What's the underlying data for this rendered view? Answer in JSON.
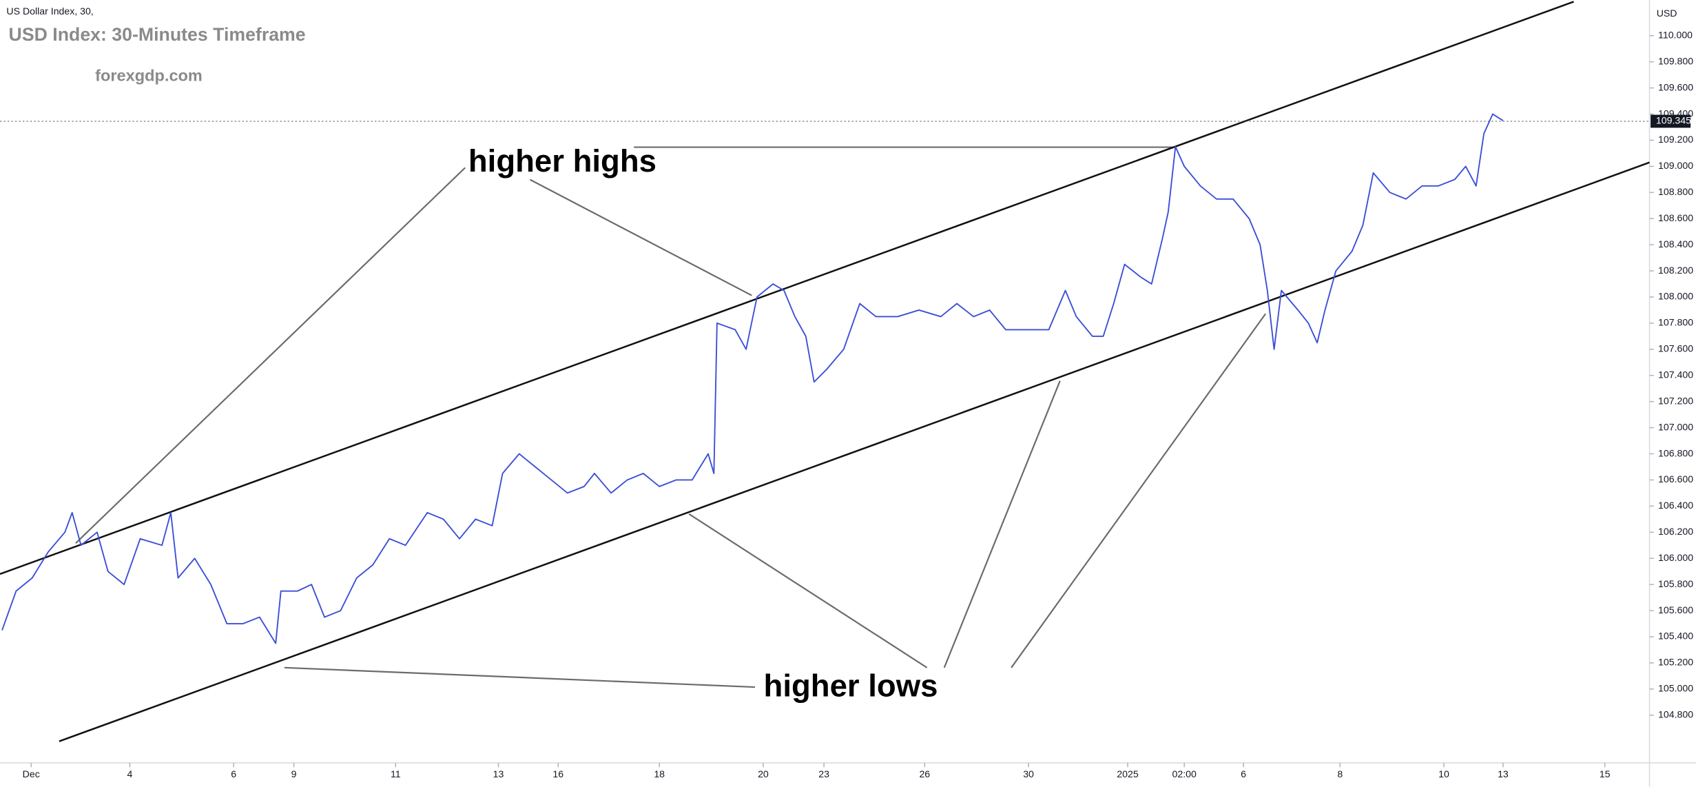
{
  "chart_data": {
    "type": "line",
    "symbol": "US Dollar Index, 30,",
    "title": "USD Index: 30-Minutes Timeframe",
    "watermark": "forexgdp.com",
    "y_axis_label": "USD",
    "annotations": [
      "higher highs",
      "higher lows"
    ],
    "color": "#3b4fd6",
    "grid": false,
    "xlim": [
      -0.6,
      31.17
    ],
    "ylim": [
      104.435,
      110.273
    ],
    "xticks": [
      {
        "value": 0,
        "label": "Dec"
      },
      {
        "value": 1.9,
        "label": "4"
      },
      {
        "value": 3.9,
        "label": "6"
      },
      {
        "value": 5.06,
        "label": "9"
      },
      {
        "value": 7.02,
        "label": "11"
      },
      {
        "value": 9,
        "label": "13"
      },
      {
        "value": 10.15,
        "label": "16"
      },
      {
        "value": 12.1,
        "label": "18"
      },
      {
        "value": 14.1,
        "label": "20"
      },
      {
        "value": 15.27,
        "label": "23"
      },
      {
        "value": 17.21,
        "label": "26"
      },
      {
        "value": 19.21,
        "label": "30"
      },
      {
        "value": 21.12,
        "label": "2025"
      },
      {
        "value": 22.21,
        "label": "02:00"
      },
      {
        "value": 23.35,
        "label": "6"
      },
      {
        "value": 25.21,
        "label": "8"
      },
      {
        "value": 27.21,
        "label": "10"
      },
      {
        "value": 28.35,
        "label": "13"
      },
      {
        "value": 30.31,
        "label": "15"
      }
    ],
    "yticks": [
      {
        "value": 104.8,
        "label": "104.800"
      },
      {
        "value": 105.0,
        "label": "105.000"
      },
      {
        "value": 105.2,
        "label": "105.200"
      },
      {
        "value": 105.4,
        "label": "105.400"
      },
      {
        "value": 105.6,
        "label": "105.600"
      },
      {
        "value": 105.8,
        "label": "105.800"
      },
      {
        "value": 106.0,
        "label": "106.000"
      },
      {
        "value": 106.2,
        "label": "106.200"
      },
      {
        "value": 106.4,
        "label": "106.400"
      },
      {
        "value": 106.6,
        "label": "106.600"
      },
      {
        "value": 106.8,
        "label": "106.800"
      },
      {
        "value": 107.0,
        "label": "107.000"
      },
      {
        "value": 107.2,
        "label": "107.200"
      },
      {
        "value": 107.4,
        "label": "107.400"
      },
      {
        "value": 107.6,
        "label": "107.600"
      },
      {
        "value": 107.8,
        "label": "107.800"
      },
      {
        "value": 108.0,
        "label": "108.000"
      },
      {
        "value": 108.2,
        "label": "108.200"
      },
      {
        "value": 108.4,
        "label": "108.400"
      },
      {
        "value": 108.6,
        "label": "108.600"
      },
      {
        "value": 108.8,
        "label": "108.800"
      },
      {
        "value": 109.0,
        "label": "109.000"
      },
      {
        "value": 109.2,
        "label": "109.200"
      },
      {
        "value": 109.4,
        "label": "109.400"
      },
      {
        "value": 109.6,
        "label": "109.600"
      },
      {
        "value": 109.8,
        "label": "109.800"
      },
      {
        "value": 110.0,
        "label": "110.000"
      }
    ],
    "last_price": 109.345,
    "x": [
      -0.56,
      -0.29,
      0.02,
      0.33,
      0.65,
      0.79,
      0.96,
      1.27,
      1.48,
      1.79,
      2.1,
      2.52,
      2.69,
      2.83,
      3.15,
      3.46,
      3.77,
      4.08,
      4.4,
      4.71,
      4.81,
      5.13,
      5.4,
      5.65,
      5.96,
      6.27,
      6.58,
      6.9,
      7.21,
      7.63,
      7.94,
      8.25,
      8.56,
      8.88,
      9.08,
      9.4,
      9.71,
      10.02,
      10.33,
      10.65,
      10.85,
      11.17,
      11.48,
      11.79,
      12.1,
      12.42,
      12.73,
      13.04,
      13.15,
      13.21,
      13.56,
      13.77,
      13.98,
      14.29,
      14.5,
      14.71,
      14.92,
      15.08,
      15.33,
      15.65,
      15.96,
      16.27,
      16.69,
      17.1,
      17.52,
      17.83,
      18.15,
      18.46,
      18.77,
      19.19,
      19.6,
      19.92,
      20.13,
      20.44,
      20.65,
      20.85,
      21.06,
      21.38,
      21.58,
      21.79,
      21.9,
      22.04,
      22.21,
      22.52,
      22.83,
      23.15,
      23.46,
      23.67,
      23.81,
      23.94,
      24.08,
      24.4,
      24.6,
      24.77,
      24.92,
      25.13,
      25.44,
      25.65,
      25.85,
      26.17,
      26.48,
      26.79,
      27.1,
      27.42,
      27.63,
      27.83,
      27.98,
      28.15,
      28.35
    ],
    "values": [
      105.45,
      105.75,
      105.85,
      106.05,
      106.2,
      106.35,
      106.1,
      106.2,
      105.9,
      105.8,
      106.15,
      106.1,
      106.35,
      105.85,
      106.0,
      105.8,
      105.5,
      105.5,
      105.55,
      105.35,
      105.75,
      105.75,
      105.8,
      105.55,
      105.6,
      105.85,
      105.95,
      106.15,
      106.1,
      106.35,
      106.3,
      106.15,
      106.3,
      106.25,
      106.65,
      106.8,
      106.7,
      106.6,
      106.5,
      106.55,
      106.65,
      106.5,
      106.6,
      106.65,
      106.55,
      106.6,
      106.6,
      106.8,
      106.65,
      107.8,
      107.75,
      107.6,
      108.0,
      108.1,
      108.05,
      107.85,
      107.7,
      107.35,
      107.45,
      107.6,
      107.95,
      107.85,
      107.85,
      107.9,
      107.85,
      107.95,
      107.85,
      107.9,
      107.75,
      107.75,
      107.75,
      108.05,
      107.85,
      107.7,
      107.7,
      107.95,
      108.25,
      108.15,
      108.1,
      108.45,
      108.65,
      109.15,
      109.0,
      108.85,
      108.75,
      108.75,
      108.6,
      108.4,
      108.05,
      107.6,
      108.05,
      107.9,
      107.8,
      107.65,
      107.9,
      108.2,
      108.35,
      108.55,
      108.95,
      108.8,
      108.75,
      108.85,
      108.85,
      108.9,
      109.0,
      108.85,
      109.25,
      109.4,
      109.35
    ],
    "channels": [
      {
        "x": [
          -0.6,
          29.71
        ],
        "y": [
          105.88,
          110.26
        ]
      },
      {
        "x": [
          0.54,
          31.17
        ],
        "y": [
          104.6,
          109.03
        ]
      }
    ]
  }
}
